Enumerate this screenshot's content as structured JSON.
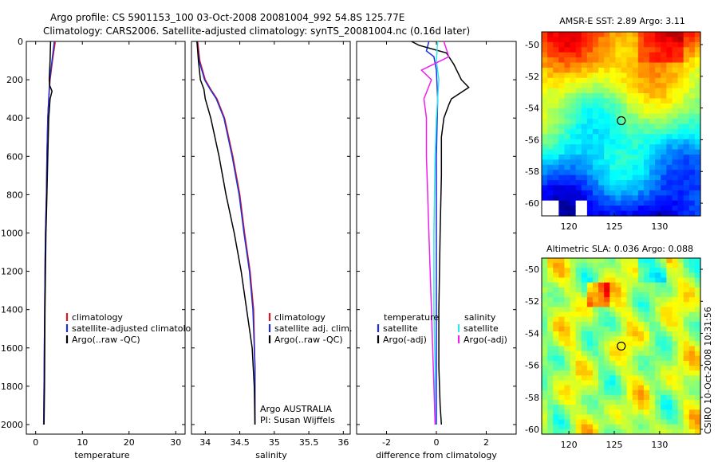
{
  "header": {
    "line1": "Argo profile: CS 5901153_100 03-Oct-2008 20081004_992 54.8S 125.77E",
    "line2": "Climatology: CARS2006. Satellite-adjusted climatology: synTS_20081004.nc (0.16d later)"
  },
  "side_label": "CSIRO 10-Oct-2008 10:31:56",
  "colors": {
    "climatology": "#e4141b",
    "satellite": "#1f2fd9",
    "argo": "#000000",
    "salinity_satellite": "#2ee6f0",
    "salinity_argo_adj": "#f01ef0"
  },
  "chart_data": [
    {
      "id": "temperature",
      "type": "line",
      "xlabel": "temperature",
      "xlim": [
        -2,
        32
      ],
      "ylim": [
        2050,
        0
      ],
      "xticks": [
        "0",
        "10",
        "20",
        "30"
      ],
      "xtick_values": [
        0,
        10,
        20,
        30
      ],
      "yticks": [
        "0",
        "200",
        "400",
        "600",
        "800",
        "1000",
        "1200",
        "1400",
        "1600",
        "1800",
        "2000"
      ],
      "ytick_values": [
        0,
        200,
        400,
        600,
        800,
        1000,
        1200,
        1400,
        1600,
        1800,
        2000
      ],
      "legend_items": [
        "climatology",
        "satellite-adjusted climatology",
        "Argo(..raw -QC)"
      ],
      "series": [
        {
          "key": "climatology",
          "name": "climatology",
          "color": "#e4141b",
          "x": [
            4.2,
            3.6,
            3.1,
            2.8,
            2.6,
            2.4,
            2.3,
            2.1,
            2.0,
            1.9,
            1.8,
            1.7
          ],
          "y": [
            0,
            100,
            200,
            300,
            400,
            600,
            800,
            1000,
            1200,
            1500,
            1800,
            2000
          ]
        },
        {
          "key": "satellite",
          "name": "satellite-adjusted climatology",
          "color": "#1f2fd9",
          "x": [
            4.0,
            3.5,
            3.0,
            2.8,
            2.6,
            2.4,
            2.3,
            2.1,
            2.0,
            1.9,
            1.8,
            1.7
          ],
          "y": [
            0,
            100,
            200,
            300,
            400,
            600,
            800,
            1000,
            1200,
            1500,
            1800,
            2000
          ]
        },
        {
          "key": "argo",
          "name": "Argo(..raw -QC)",
          "color": "#000000",
          "x": [
            3.2,
            3.1,
            2.9,
            3.0,
            3.5,
            3.1,
            2.8,
            2.6,
            2.4,
            2.2,
            2.0,
            1.9,
            1.8
          ],
          "y": [
            0,
            100,
            200,
            230,
            260,
            300,
            400,
            600,
            800,
            1000,
            1400,
            1800,
            2000
          ]
        }
      ]
    },
    {
      "id": "salinity",
      "type": "line",
      "xlabel": "salinity",
      "xlim": [
        33.8,
        36.1
      ],
      "ylim": [
        2050,
        0
      ],
      "xticks": [
        "34",
        "34.5",
        "35",
        "35.5",
        "36"
      ],
      "xtick_values": [
        34,
        34.5,
        35,
        35.5,
        36
      ],
      "legend_items": [
        "climatology",
        "satellite adj. clim.",
        "Argo(..raw -QC)"
      ],
      "annotation": [
        "Argo AUSTRALIA",
        "PI: Susan Wijffels"
      ],
      "series": [
        {
          "key": "climatology",
          "name": "climatology",
          "color": "#e4141b",
          "x": [
            33.89,
            33.92,
            34.0,
            34.08,
            34.17,
            34.28,
            34.4,
            34.5,
            34.57,
            34.65,
            34.7,
            34.72,
            34.72
          ],
          "y": [
            0,
            100,
            200,
            250,
            300,
            400,
            600,
            800,
            1000,
            1200,
            1400,
            1700,
            2000
          ]
        },
        {
          "key": "satellite",
          "name": "satellite adj. clim.",
          "color": "#1f2fd9",
          "x": [
            33.88,
            33.91,
            33.99,
            34.07,
            34.16,
            34.27,
            34.39,
            34.49,
            34.56,
            34.64,
            34.69,
            34.72,
            34.72
          ],
          "y": [
            0,
            100,
            200,
            250,
            300,
            400,
            600,
            800,
            1000,
            1200,
            1400,
            1700,
            2000
          ]
        },
        {
          "key": "argo",
          "name": "Argo(..raw -QC)",
          "color": "#000000",
          "x": [
            33.88,
            33.9,
            33.93,
            33.98,
            34.0,
            34.08,
            34.2,
            34.3,
            34.42,
            34.52,
            34.6,
            34.68,
            34.71,
            34.72
          ],
          "y": [
            0,
            100,
            200,
            250,
            300,
            400,
            600,
            800,
            1000,
            1200,
            1400,
            1600,
            1800,
            2000
          ]
        }
      ]
    },
    {
      "id": "difference",
      "type": "line",
      "xlabel": "difference from climatology",
      "xlim": [
        -3.2,
        3.2
      ],
      "ylim": [
        2050,
        0
      ],
      "xticks": [
        "-2",
        "0",
        "2"
      ],
      "xtick_values": [
        -2,
        0,
        2
      ],
      "legend_left": [
        "temperature",
        "satellite",
        "Argo(-adj)"
      ],
      "legend_right": [
        "salinity",
        "satellite",
        "Argo(-adj)"
      ],
      "series": [
        {
          "key": "satellite",
          "name": "satellite",
          "color": "#1f2fd9",
          "x": [
            -0.3,
            -0.4,
            -0.1,
            0.0,
            0.05,
            0.0,
            0.0,
            0.0,
            0.0,
            0.0,
            0.0,
            0.0
          ],
          "y": [
            0,
            50,
            80,
            150,
            300,
            600,
            1000,
            1400,
            1600,
            1800,
            1900,
            2000
          ]
        },
        {
          "key": "argo",
          "name": "Argo(-adj)",
          "color": "#000000",
          "x": [
            -1.0,
            -0.7,
            0.4,
            0.7,
            1.0,
            1.3,
            0.6,
            0.5,
            0.3,
            0.2,
            0.2,
            0.15,
            0.1,
            0.1,
            0.15,
            0.2
          ],
          "y": [
            0,
            20,
            60,
            120,
            200,
            240,
            300,
            330,
            400,
            500,
            700,
            1000,
            1400,
            1700,
            1900,
            2000
          ]
        },
        {
          "key": "salinity_satellite",
          "name": "satellite",
          "color": "#2ee6f0",
          "x": [
            0.05,
            0.0,
            0.1,
            0.05,
            0.0,
            -0.05,
            -0.1,
            -0.1,
            -0.05,
            -0.05
          ],
          "y": [
            0,
            100,
            200,
            300,
            400,
            600,
            1000,
            1400,
            1700,
            2000
          ]
        },
        {
          "key": "salinity_argo_adj",
          "name": "Argo(-adj)",
          "color": "#f01ef0",
          "x": [
            0.3,
            0.5,
            -0.6,
            -0.2,
            -0.5,
            -0.4,
            -0.4,
            -0.35,
            -0.3,
            -0.2,
            -0.1,
            -0.05
          ],
          "y": [
            0,
            80,
            150,
            200,
            300,
            400,
            600,
            800,
            1000,
            1400,
            1800,
            2000
          ]
        }
      ]
    },
    {
      "id": "sst_map",
      "type": "heatmap",
      "title": "AMSR-E SST: 2.89 Argo: 3.11",
      "xticks": [
        "120",
        "125",
        "130"
      ],
      "xtick_values": [
        120,
        125,
        130
      ],
      "yticks": [
        "-50",
        "-52",
        "-54",
        "-56",
        "-58",
        "-60"
      ],
      "ytick_values": [
        -50,
        -52,
        -54,
        -56,
        -58,
        -60
      ],
      "xlim": [
        117,
        134.5
      ],
      "ylim": [
        -60.8,
        -49.2
      ],
      "float_position": {
        "lon": 125.77,
        "lat": -54.8
      }
    },
    {
      "id": "sla_map",
      "type": "heatmap",
      "title": "Altimetric SLA: 0.036 Argo: 0.088",
      "xticks": [
        "120",
        "125",
        "130"
      ],
      "xtick_values": [
        120,
        125,
        130
      ],
      "yticks": [
        "-50",
        "-52",
        "-54",
        "-56",
        "-58",
        "-60"
      ],
      "ytick_values": [
        -50,
        -52,
        -54,
        -56,
        -58,
        -60
      ],
      "xlim": [
        117,
        134.5
      ],
      "ylim": [
        -60.3,
        -49.3
      ],
      "float_position": {
        "lon": 125.77,
        "lat": -54.8
      }
    }
  ]
}
